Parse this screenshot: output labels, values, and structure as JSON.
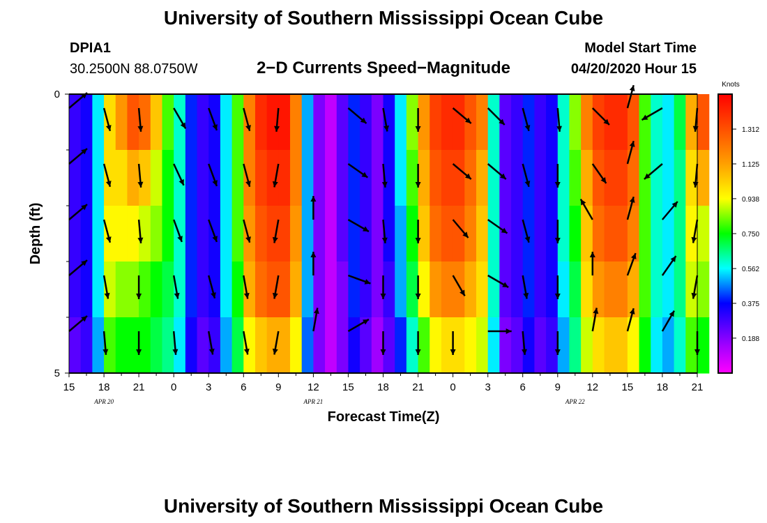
{
  "header": {
    "title": "University of Southern Mississippi Ocean Cube",
    "station": "DPIA1",
    "coords": "30.2500N 88.0750W",
    "subtitle": "2−D Currents Speed−Magnitude",
    "model_label": "Model Start Time",
    "model_time": "04/20/2020 Hour 15"
  },
  "footer": {
    "title": "University of Southern Mississippi Ocean Cube"
  },
  "chart_data": {
    "type": "heatmap",
    "xlabel": "Forecast Time(Z)",
    "ylabel": "Depth (ft)",
    "x_range_hours": [
      0,
      54
    ],
    "y_range": [
      0,
      5
    ],
    "y_ticks": [
      "0",
      "5"
    ],
    "x_ticks": [
      "15",
      "18",
      "21",
      "0",
      "3",
      "6",
      "9",
      "12",
      "15",
      "18",
      "21",
      "0",
      "3",
      "6",
      "9",
      "12",
      "15",
      "18",
      "21"
    ],
    "dates": [
      {
        "label": "APR  20",
        "hour": 3
      },
      {
        "label": "APR  21",
        "hour": 21
      },
      {
        "label": "APR  22",
        "hour": 43.5
      }
    ],
    "colorbar": {
      "units": "Knots",
      "min": 0,
      "max": 1.5,
      "ticks": [
        "0.188",
        "0.375",
        "0.562",
        "0.750",
        "0.938",
        "1.125",
        "1.312"
      ]
    },
    "depth_levels": [
      0,
      1,
      2,
      3,
      4,
      5
    ],
    "speed_knots": [
      [
        0.3,
        0.35,
        0.55,
        1.0,
        1.15,
        1.3,
        1.25,
        1.05,
        0.8,
        0.6,
        0.4,
        0.3,
        0.35,
        0.55,
        0.8,
        1.2,
        1.4,
        1.45,
        1.45,
        1.2,
        0.5,
        0.2,
        0.1,
        0.25,
        0.4,
        0.3,
        0.2,
        0.35,
        0.55,
        0.85,
        1.15,
        1.35,
        1.4,
        1.4,
        1.3,
        1.2,
        0.6,
        0.25,
        0.3,
        0.4,
        0.3,
        0.35,
        0.6,
        0.85,
        1.2,
        1.35,
        1.4,
        1.4,
        1.3,
        0.8,
        0.6,
        0.55,
        0.7,
        1.1,
        1.3
      ],
      [
        0.3,
        0.35,
        0.55,
        1.0,
        1.0,
        1.1,
        1.05,
        0.9,
        0.75,
        0.6,
        0.4,
        0.3,
        0.35,
        0.55,
        0.8,
        1.2,
        1.35,
        1.4,
        1.4,
        1.2,
        0.5,
        0.2,
        0.1,
        0.25,
        0.4,
        0.3,
        0.2,
        0.35,
        0.55,
        0.8,
        1.1,
        1.3,
        1.35,
        1.35,
        1.25,
        1.1,
        0.6,
        0.25,
        0.3,
        0.4,
        0.3,
        0.35,
        0.6,
        0.8,
        1.1,
        1.3,
        1.35,
        1.35,
        1.25,
        0.8,
        0.6,
        0.55,
        0.65,
        1.0,
        1.1
      ],
      [
        0.3,
        0.35,
        0.55,
        0.95,
        0.95,
        0.95,
        0.9,
        0.85,
        0.75,
        0.6,
        0.4,
        0.3,
        0.35,
        0.55,
        0.8,
        1.15,
        1.3,
        1.35,
        1.35,
        1.15,
        0.5,
        0.2,
        0.1,
        0.25,
        0.4,
        0.3,
        0.2,
        0.35,
        0.5,
        0.75,
        1.05,
        1.25,
        1.3,
        1.3,
        1.2,
        1.05,
        0.6,
        0.25,
        0.3,
        0.4,
        0.3,
        0.35,
        0.6,
        0.75,
        1.05,
        1.25,
        1.3,
        1.3,
        1.2,
        0.8,
        0.6,
        0.55,
        0.65,
        0.95,
        0.9
      ],
      [
        0.3,
        0.35,
        0.55,
        0.9,
        0.85,
        0.85,
        0.8,
        0.75,
        0.7,
        0.6,
        0.4,
        0.3,
        0.35,
        0.55,
        0.75,
        1.1,
        1.25,
        1.3,
        1.3,
        1.1,
        0.5,
        0.2,
        0.1,
        0.2,
        0.4,
        0.3,
        0.2,
        0.3,
        0.5,
        0.7,
        0.95,
        1.15,
        1.2,
        1.2,
        1.1,
        1.0,
        0.6,
        0.25,
        0.3,
        0.4,
        0.3,
        0.35,
        0.55,
        0.7,
        1.0,
        1.15,
        1.2,
        1.2,
        1.1,
        0.8,
        0.6,
        0.55,
        0.65,
        0.9,
        0.85
      ],
      [
        0.25,
        0.3,
        0.5,
        0.8,
        0.75,
        0.75,
        0.75,
        0.7,
        0.65,
        0.55,
        0.35,
        0.25,
        0.3,
        0.5,
        0.7,
        0.95,
        1.05,
        1.1,
        1.1,
        0.95,
        0.45,
        0.2,
        0.1,
        0.2,
        0.35,
        0.25,
        0.15,
        0.25,
        0.4,
        0.6,
        0.8,
        0.95,
        1.0,
        1.0,
        0.95,
        0.9,
        0.55,
        0.2,
        0.25,
        0.35,
        0.25,
        0.3,
        0.5,
        0.65,
        0.9,
        1.0,
        1.05,
        1.05,
        0.95,
        0.75,
        0.55,
        0.5,
        0.6,
        0.8,
        0.75
      ],
      [
        0.25,
        0.3,
        0.5,
        0.75,
        0.7,
        0.7,
        0.7,
        0.65,
        0.6,
        0.5,
        0.35,
        0.25,
        0.3,
        0.45,
        0.65,
        0.85,
        0.95,
        1.0,
        1.0,
        0.9,
        0.45,
        0.2,
        0.1,
        0.2,
        0.35,
        0.25,
        0.15,
        0.25,
        0.35,
        0.55,
        0.7,
        0.85,
        0.9,
        0.9,
        0.85,
        0.8,
        0.55,
        0.2,
        0.25,
        0.35,
        0.25,
        0.3,
        0.5,
        0.6,
        0.8,
        0.9,
        0.95,
        0.95,
        0.9,
        0.7,
        0.55,
        0.5,
        0.55,
        0.75,
        0.7
      ]
    ],
    "vectors": [
      {
        "hour": 0,
        "dirs": [
          50,
          50,
          50,
          50,
          50
        ]
      },
      {
        "hour": 3,
        "dirs": [
          165,
          165,
          165,
          170,
          175
        ]
      },
      {
        "hour": 6,
        "dirs": [
          175,
          175,
          175,
          180,
          180
        ]
      },
      {
        "hour": 9,
        "dirs": [
          150,
          155,
          160,
          170,
          175
        ]
      },
      {
        "hour": 12,
        "dirs": [
          160,
          160,
          160,
          165,
          170
        ]
      },
      {
        "hour": 15,
        "dirs": [
          165,
          165,
          165,
          170,
          170
        ]
      },
      {
        "hour": 18,
        "dirs": [
          185,
          190,
          190,
          190,
          190
        ]
      },
      {
        "hour": 21,
        "dirs": [
          null,
          null,
          0,
          0,
          10
        ]
      },
      {
        "hour": 24,
        "dirs": [
          130,
          125,
          120,
          110,
          60
        ]
      },
      {
        "hour": 27,
        "dirs": [
          170,
          175,
          175,
          180,
          180
        ]
      },
      {
        "hour": 30,
        "dirs": [
          180,
          180,
          180,
          180,
          180
        ]
      },
      {
        "hour": 33,
        "dirs": [
          130,
          130,
          140,
          150,
          180
        ]
      },
      {
        "hour": 36,
        "dirs": [
          135,
          130,
          125,
          120,
          90
        ]
      },
      {
        "hour": 39,
        "dirs": [
          165,
          165,
          165,
          170,
          175
        ]
      },
      {
        "hour": 42,
        "dirs": [
          175,
          180,
          180,
          180,
          180
        ]
      },
      {
        "hour": 45,
        "dirs": [
          135,
          145,
          330,
          0,
          10
        ]
      },
      {
        "hour": 48,
        "dirs": [
          15,
          15,
          15,
          20,
          15
        ]
      },
      {
        "hour": 51,
        "dirs": [
          240,
          230,
          40,
          35,
          30
        ]
      },
      {
        "hour": 54,
        "dirs": [
          185,
          185,
          190,
          190,
          180
        ]
      }
    ]
  }
}
